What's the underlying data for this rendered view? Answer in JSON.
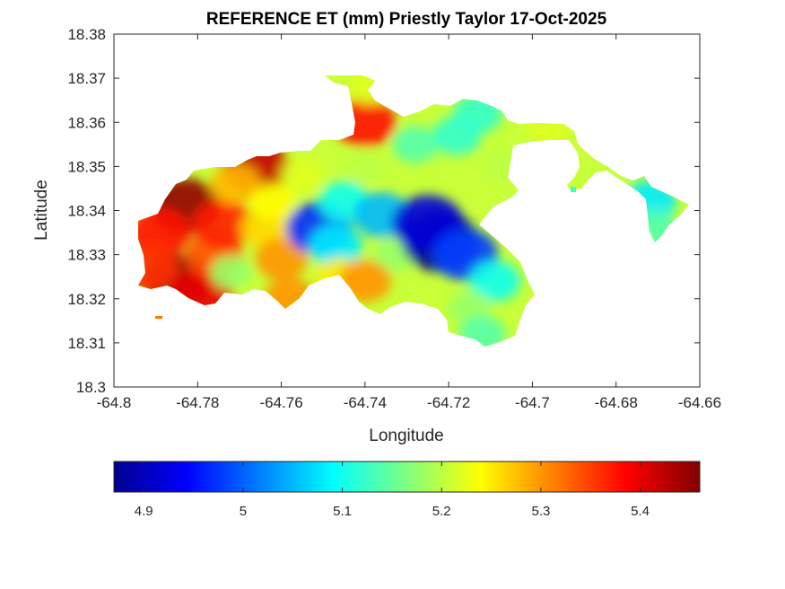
{
  "chart_data": {
    "type": "heatmap",
    "title": "REFERENCE ET (mm) Priestly Taylor 17-Oct-2025",
    "xlabel": "Longitude",
    "ylabel": "Latitude",
    "xlim": [
      -64.8,
      -64.66
    ],
    "ylim": [
      18.3,
      18.38
    ],
    "xticks": [
      "-64.8",
      "-64.78",
      "-64.76",
      "-64.74",
      "-64.72",
      "-64.7",
      "-64.68",
      "-64.66"
    ],
    "yticks": [
      "18.3",
      "18.31",
      "18.32",
      "18.33",
      "18.34",
      "18.35",
      "18.36",
      "18.37",
      "18.38"
    ],
    "grid": false,
    "colormap": "jet",
    "colorbar": {
      "orientation": "horizontal",
      "placement": "below",
      "clim": [
        4.87,
        5.46
      ],
      "ticks": [
        "4.9",
        "5",
        "5.1",
        "5.2",
        "5.3",
        "5.4"
      ]
    },
    "field_points": [
      {
        "lon": -64.783,
        "lat": 18.341,
        "value": 5.45
      },
      {
        "lon": -64.789,
        "lat": 18.335,
        "value": 5.38
      },
      {
        "lon": -64.785,
        "lat": 18.324,
        "value": 5.44
      },
      {
        "lon": -64.779,
        "lat": 18.321,
        "value": 5.4
      },
      {
        "lon": -64.792,
        "lat": 18.327,
        "value": 5.36
      },
      {
        "lon": -64.776,
        "lat": 18.33,
        "value": 5.34
      },
      {
        "lon": -64.774,
        "lat": 18.337,
        "value": 5.37
      },
      {
        "lon": -64.766,
        "lat": 18.35,
        "value": 5.42
      },
      {
        "lon": -64.771,
        "lat": 18.346,
        "value": 5.28
      },
      {
        "lon": -64.772,
        "lat": 18.326,
        "value": 5.18
      },
      {
        "lon": -64.764,
        "lat": 18.336,
        "value": 5.26
      },
      {
        "lon": -64.76,
        "lat": 18.329,
        "value": 5.3
      },
      {
        "lon": -64.762,
        "lat": 18.342,
        "value": 5.24
      },
      {
        "lon": -64.755,
        "lat": 18.348,
        "value": 5.22
      },
      {
        "lon": -64.758,
        "lat": 18.32,
        "value": 5.3
      },
      {
        "lon": -64.751,
        "lat": 18.336,
        "value": 4.97
      },
      {
        "lon": -64.747,
        "lat": 18.332,
        "value": 5.08
      },
      {
        "lon": -64.745,
        "lat": 18.342,
        "value": 5.1
      },
      {
        "lon": -64.746,
        "lat": 18.325,
        "value": 5.25
      },
      {
        "lon": -64.74,
        "lat": 18.35,
        "value": 5.2
      },
      {
        "lon": -64.74,
        "lat": 18.36,
        "value": 5.38
      },
      {
        "lon": -64.739,
        "lat": 18.368,
        "value": 5.22
      },
      {
        "lon": -64.736,
        "lat": 18.339,
        "value": 5.05
      },
      {
        "lon": -64.733,
        "lat": 18.33,
        "value": 5.18
      },
      {
        "lon": -64.74,
        "lat": 18.324,
        "value": 5.3
      },
      {
        "lon": -64.728,
        "lat": 18.355,
        "value": 5.14
      },
      {
        "lon": -64.722,
        "lat": 18.333,
        "value": 4.88
      },
      {
        "lon": -64.725,
        "lat": 18.337,
        "value": 4.92
      },
      {
        "lon": -64.716,
        "lat": 18.33,
        "value": 4.98
      },
      {
        "lon": -64.718,
        "lat": 18.357,
        "value": 5.12
      },
      {
        "lon": -64.713,
        "lat": 18.362,
        "value": 5.12
      },
      {
        "lon": -64.709,
        "lat": 18.324,
        "value": 5.1
      },
      {
        "lon": -64.715,
        "lat": 18.318,
        "value": 5.18
      },
      {
        "lon": -64.712,
        "lat": 18.312,
        "value": 5.14
      },
      {
        "lon": -64.707,
        "lat": 18.35,
        "value": 5.2
      },
      {
        "lon": -64.696,
        "lat": 18.359,
        "value": 5.22
      },
      {
        "lon": -64.683,
        "lat": 18.345,
        "value": 5.2
      },
      {
        "lon": -64.672,
        "lat": 18.342,
        "value": 5.08
      },
      {
        "lon": -64.671,
        "lat": 18.336,
        "value": 5.14
      }
    ]
  }
}
